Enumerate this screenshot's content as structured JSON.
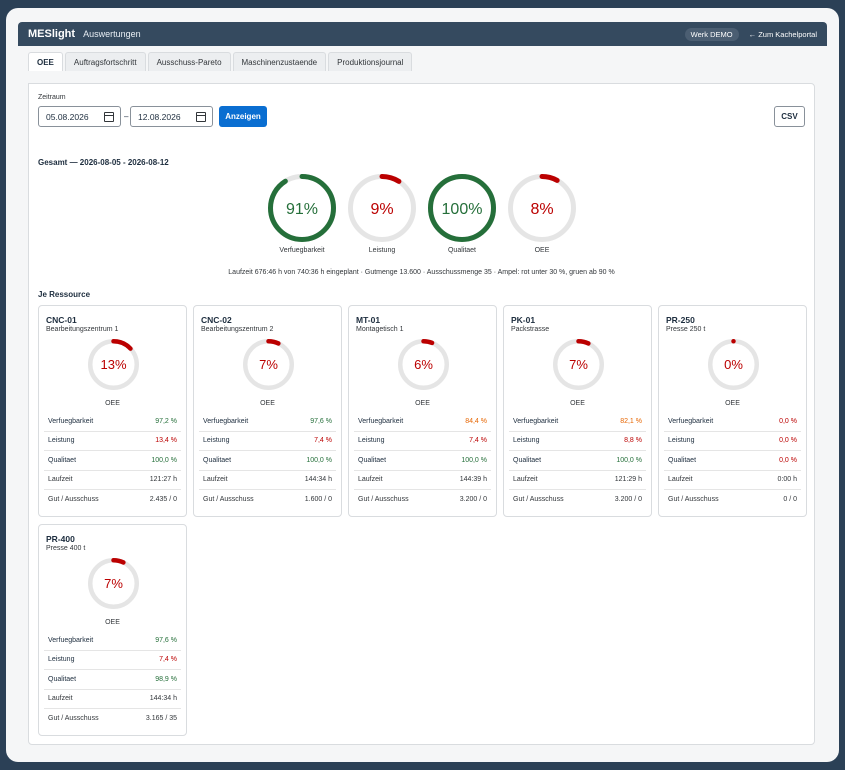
{
  "app": {
    "logo": "MESlight",
    "subtitle": "Auswertungen",
    "plant_badge": "Werk DEMO",
    "back_link": "← Zum Kachelportal"
  },
  "tabs": [
    {
      "label": "OEE",
      "active": true
    },
    {
      "label": "Auftragsfortschritt"
    },
    {
      "label": "Ausschuss-Pareto"
    },
    {
      "label": "Maschinenzustaende"
    },
    {
      "label": "Produktionsjournal"
    }
  ],
  "filter": {
    "label": "Zeitraum",
    "from": "05.08.2026",
    "separator": "–",
    "to": "12.08.2026",
    "submit_label": "Anzeigen",
    "csv_label": "CSV"
  },
  "colors": {
    "good": "#256f3a",
    "warn": "#e76500",
    "bad": "#bb0000",
    "track": "#e5e5e5"
  },
  "total": {
    "title": "Gesamt — 2026-08-05 - 2026-08-12",
    "gauges": [
      {
        "label": "Verfuegbarkeit",
        "value_text": "91%",
        "fraction": 0.91,
        "status": "good"
      },
      {
        "label": "Leistung",
        "value_text": "9%",
        "fraction": 0.09,
        "status": "bad"
      },
      {
        "label": "Qualitaet",
        "value_text": "100%",
        "fraction": 1.0,
        "status": "good"
      },
      {
        "label": "OEE",
        "value_text": "8%",
        "fraction": 0.08,
        "status": "bad"
      }
    ],
    "summary": "Laufzeit 676:46 h von 740:36 h eingeplant · Gutmenge 13.600 · Ausschussmenge 35 · Ampel: rot unter 30 %, gruen ab 90 %"
  },
  "resources_title": "Je Ressource",
  "gauge_caption": "OEE",
  "kpi_labels": {
    "availability": "Verfuegbarkeit",
    "performance": "Leistung",
    "quality": "Qualitaet",
    "runtime": "Laufzeit",
    "good_scrap": "Gut / Ausschuss"
  },
  "resources": [
    {
      "name": "CNC-01",
      "desc": "Bearbeitungszentrum 1",
      "oee_text": "13%",
      "oee": 0.13,
      "oee_status": "bad",
      "availability": "97,2 %",
      "availability_status": "good",
      "performance": "13,4 %",
      "performance_status": "bad",
      "quality": "100,0 %",
      "quality_status": "good",
      "runtime": "121:27 h",
      "good_scrap": "2.435 / 0"
    },
    {
      "name": "CNC-02",
      "desc": "Bearbeitungszentrum 2",
      "oee_text": "7%",
      "oee": 0.07,
      "oee_status": "bad",
      "availability": "97,6 %",
      "availability_status": "good",
      "performance": "7,4 %",
      "performance_status": "bad",
      "quality": "100,0 %",
      "quality_status": "good",
      "runtime": "144:34 h",
      "good_scrap": "1.600 / 0"
    },
    {
      "name": "MT-01",
      "desc": "Montagetisch 1",
      "oee_text": "6%",
      "oee": 0.06,
      "oee_status": "bad",
      "availability": "84,4 %",
      "availability_status": "warn",
      "performance": "7,4 %",
      "performance_status": "bad",
      "quality": "100,0 %",
      "quality_status": "good",
      "runtime": "144:39 h",
      "good_scrap": "3.200 / 0"
    },
    {
      "name": "PK-01",
      "desc": "Packstrasse",
      "oee_text": "7%",
      "oee": 0.07,
      "oee_status": "bad",
      "availability": "82,1 %",
      "availability_status": "warn",
      "performance": "8,8 %",
      "performance_status": "bad",
      "quality": "100,0 %",
      "quality_status": "good",
      "runtime": "121:29 h",
      "good_scrap": "3.200 / 0"
    },
    {
      "name": "PR-250",
      "desc": "Presse 250 t",
      "oee_text": "0%",
      "oee": 0.0,
      "oee_status": "bad",
      "availability": "0,0 %",
      "availability_status": "bad",
      "performance": "0,0 %",
      "performance_status": "bad",
      "quality": "0,0 %",
      "quality_status": "bad",
      "runtime": "0:00 h",
      "good_scrap": "0 / 0"
    },
    {
      "name": "PR-400",
      "desc": "Presse 400 t",
      "oee_text": "7%",
      "oee": 0.07,
      "oee_status": "bad",
      "availability": "97,6 %",
      "availability_status": "good",
      "performance": "7,4 %",
      "performance_status": "bad",
      "quality": "98,9 %",
      "quality_status": "good",
      "runtime": "144:34 h",
      "good_scrap": "3.165 / 35"
    }
  ]
}
